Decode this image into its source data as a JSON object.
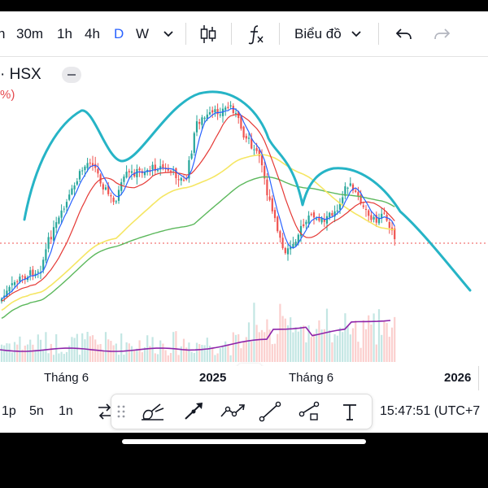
{
  "toolbar": {
    "intervals": [
      "h",
      "30m",
      "1h",
      "4h",
      "D",
      "W"
    ],
    "active_interval": "D",
    "dropdown_icon": "chevron-down-icon",
    "candle_icon": "candlestick-icon",
    "indicators_icon": "function-fx-icon",
    "chart_type_label": "Biểu đồ",
    "undo_icon": "undo-icon",
    "redo_icon": "redo-icon"
  },
  "legend": {
    "symbol": "· HSX",
    "change": "%)"
  },
  "time_axis": {
    "labels": [
      "Tháng 6",
      "2025",
      "Tháng 6",
      "2026"
    ]
  },
  "bottom_bar": {
    "ranges": [
      "1p",
      "5n",
      "1n"
    ],
    "compare_icon": "compare-arrows-icon",
    "clock": "15:47:51 (UTC+7"
  },
  "draw_tools": [
    "drag-handle-icon",
    "brush-icon",
    "arrow-tool-icon",
    "path-tool-icon",
    "trend-line-icon",
    "ray-tool-icon",
    "text-tool-icon"
  ],
  "colors": {
    "accent": "#2962ff",
    "up": "#26a69a",
    "down": "#ef5350",
    "ma_fast": "#2962ff",
    "ma_mid": "#e53935",
    "ma_slow": "#f5e663",
    "ma_long": "#5cb85c",
    "volume_ma": "#8e24aa",
    "drawing": "#26b4c6"
  },
  "chart_data": {
    "type": "line",
    "xlabel": "",
    "ylabel": "",
    "x_axis_labels": [
      "Tháng 6",
      "2025",
      "Tháng 6",
      "2026"
    ],
    "grid": false,
    "legend": "none",
    "series_count": 5,
    "annotations": [
      "hand-drawn double-hump curve over price"
    ]
  }
}
